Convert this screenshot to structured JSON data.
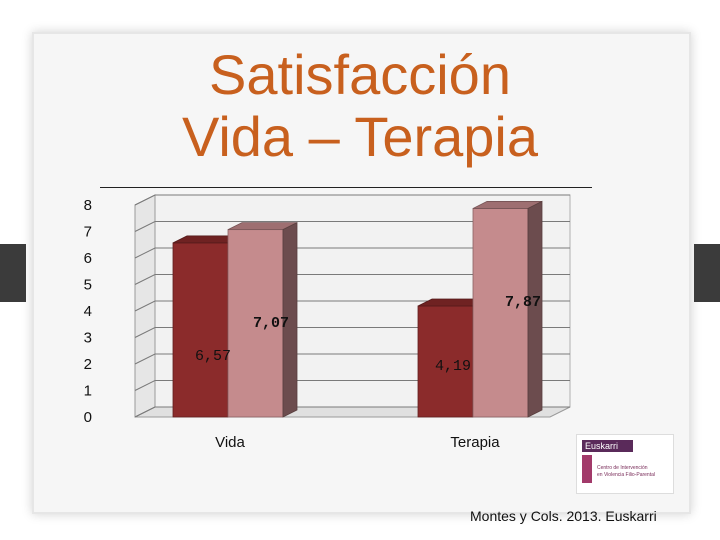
{
  "slide": {
    "title_line1": "Satisfacción",
    "title_line2": "Vida – Terapia",
    "credit": "Montes y Cols. 2013. Euskarri"
  },
  "logo": {
    "name": "Euskarri",
    "caption_line1": "Centro de Intervención",
    "caption_line2": "en Violencia Filio-Parental"
  },
  "colors": {
    "series1": "#8b2b2b",
    "series2": "#c58b8d",
    "title": "#c8601e",
    "bracket": "#3b3b3b"
  },
  "chart_data": {
    "type": "bar",
    "categories": [
      "Vida",
      "Terapia"
    ],
    "series": [
      {
        "values": [
          6.57,
          4.19
        ]
      },
      {
        "values": [
          7.07,
          7.87
        ]
      }
    ],
    "y_ticks": [
      "0",
      "1",
      "2",
      "3",
      "4",
      "5",
      "6",
      "7",
      "8"
    ],
    "ylim": [
      0,
      8
    ],
    "grid": true,
    "three_d": true,
    "data_labels": [
      [
        "6,57",
        "4,19"
      ],
      [
        "7,07",
        "7,87"
      ]
    ]
  }
}
